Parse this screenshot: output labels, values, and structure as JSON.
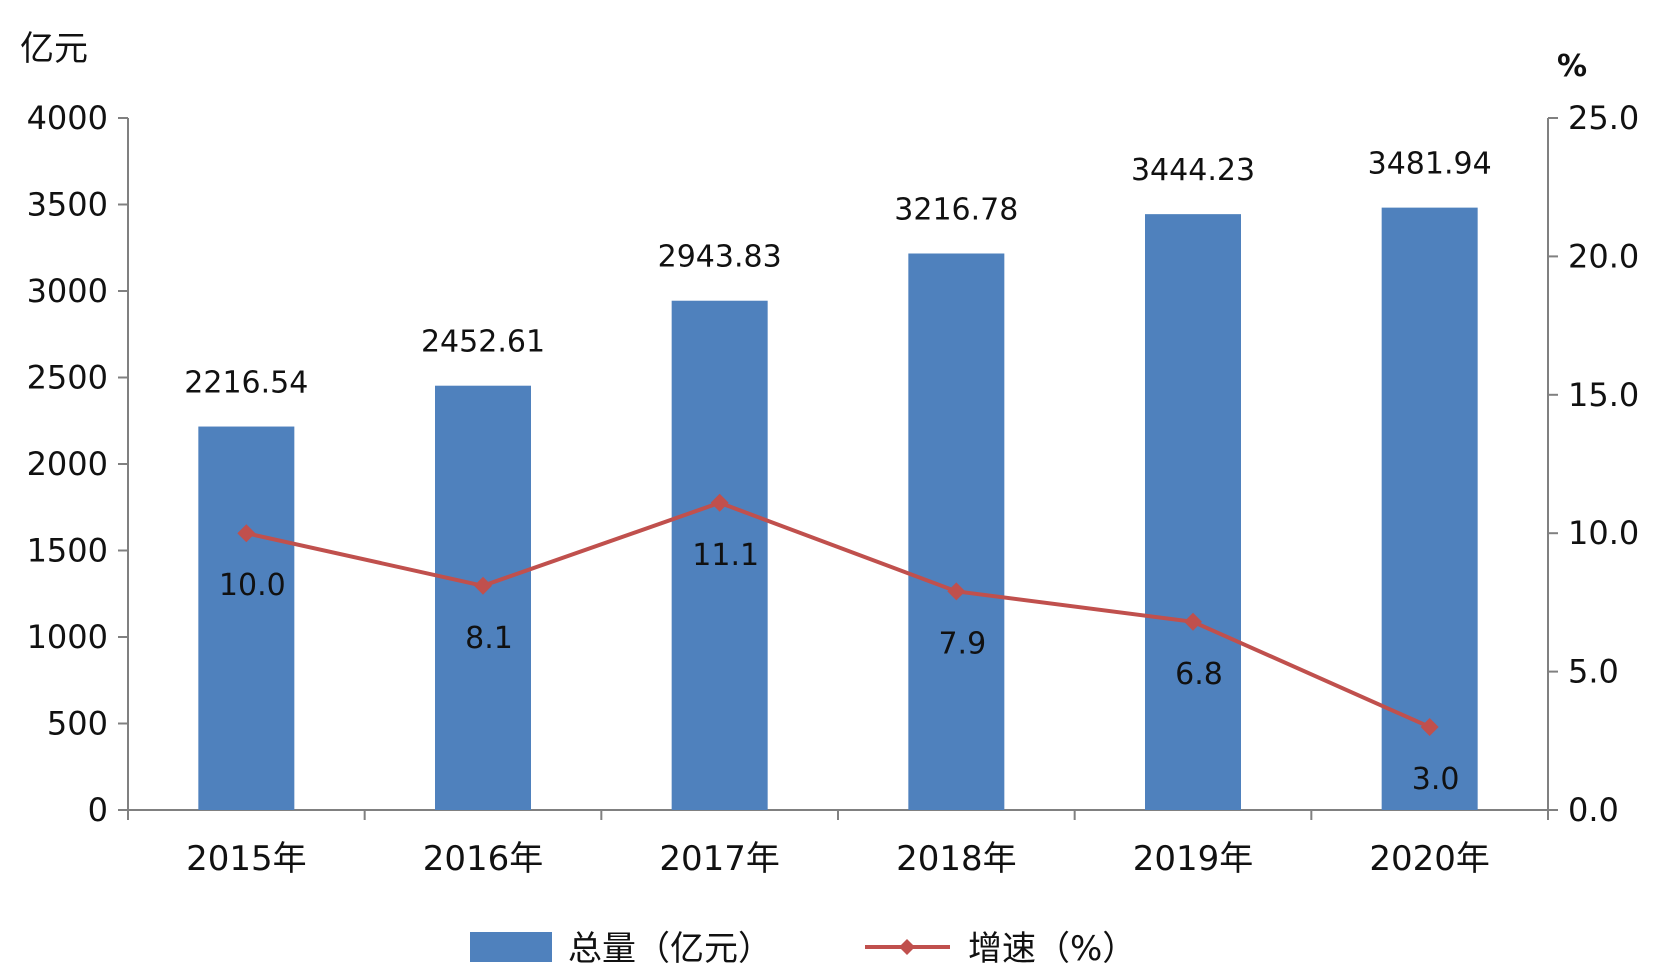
{
  "chart_data": {
    "type": "bar",
    "categories": [
      "2015年",
      "2016年",
      "2017年",
      "2018年",
      "2019年",
      "2020年"
    ],
    "y_left_unit": "亿元",
    "y_right_unit": "%",
    "y_left_ylim": [
      0,
      4000
    ],
    "y_right_ylim": [
      0,
      25
    ],
    "y_left_ticks": [
      "0",
      "500",
      "1000",
      "1500",
      "2000",
      "2500",
      "3000",
      "3500",
      "4000"
    ],
    "y_right_ticks": [
      "0.0",
      "5.0",
      "10.0",
      "15.0",
      "20.0",
      "25.0"
    ],
    "grid": false,
    "legend_position": "bottom-center",
    "series": [
      {
        "name": "总量（亿元）",
        "type": "bar",
        "axis": "left",
        "color": "#4F81BD",
        "values": [
          2216.54,
          2452.61,
          2943.83,
          3216.78,
          3444.23,
          3481.94
        ],
        "labels": [
          "2216.54",
          "2452.61",
          "2943.83",
          "3216.78",
          "3444.23",
          "3481.94"
        ]
      },
      {
        "name": "增速（%）",
        "type": "line",
        "axis": "right",
        "color": "#C0504D",
        "values": [
          10.0,
          8.1,
          11.1,
          7.9,
          6.8,
          3.0
        ],
        "labels": [
          "10.0",
          "8.1",
          "11.1",
          "7.9",
          "6.8",
          "3.0"
        ]
      }
    ]
  }
}
